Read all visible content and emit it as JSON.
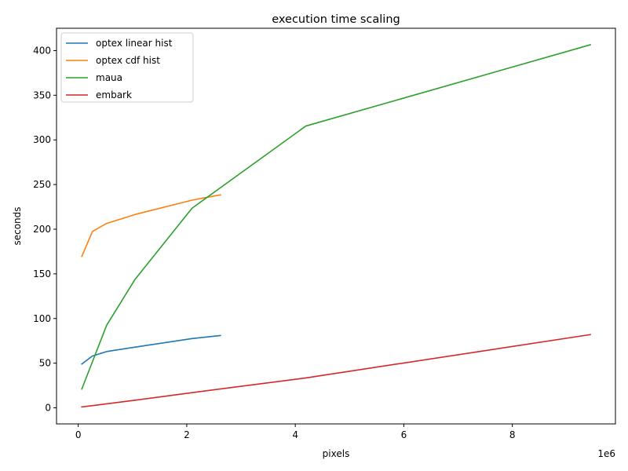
{
  "chart_data": {
    "type": "line",
    "title": "execution time scaling",
    "xlabel": "pixels",
    "ylabel": "seconds",
    "x_offset_label": "1e6",
    "xlim": [
      -400000,
      9900000
    ],
    "ylim": [
      -18,
      425
    ],
    "xticks": [
      0,
      2000000,
      4000000,
      6000000,
      8000000
    ],
    "xtick_labels": [
      "0",
      "2",
      "4",
      "6",
      "8"
    ],
    "yticks": [
      0,
      50,
      100,
      150,
      200,
      250,
      300,
      350,
      400
    ],
    "ytick_labels": [
      "0",
      "50",
      "100",
      "150",
      "200",
      "250",
      "300",
      "350",
      "400"
    ],
    "grid": false,
    "legend_position": "top-left",
    "series": [
      {
        "name": "optex linear hist",
        "color": "#1f77b4",
        "x": [
          65536,
          262144,
          524288,
          1048576,
          2097152,
          2621440
        ],
        "y": [
          49,
          58,
          63,
          68,
          77.5,
          81
        ]
      },
      {
        "name": "optex cdf hist",
        "color": "#ff7f0e",
        "x": [
          65536,
          262144,
          524288,
          1048576,
          2097152,
          2621440
        ],
        "y": [
          169.5,
          197.5,
          206.5,
          216.5,
          232.5,
          238.5
        ]
      },
      {
        "name": "maua",
        "color": "#2ca02c",
        "x": [
          65536,
          524288,
          1048576,
          2097152,
          4194304,
          9437184
        ],
        "y": [
          21,
          92.5,
          144,
          223.5,
          315.5,
          406.5
        ]
      },
      {
        "name": "embark",
        "color": "#d62728",
        "x": [
          65536,
          262144,
          1048576,
          2097152,
          4194304,
          9437184
        ],
        "y": [
          1,
          2.5,
          8.5,
          17,
          33.5,
          82
        ]
      }
    ]
  }
}
